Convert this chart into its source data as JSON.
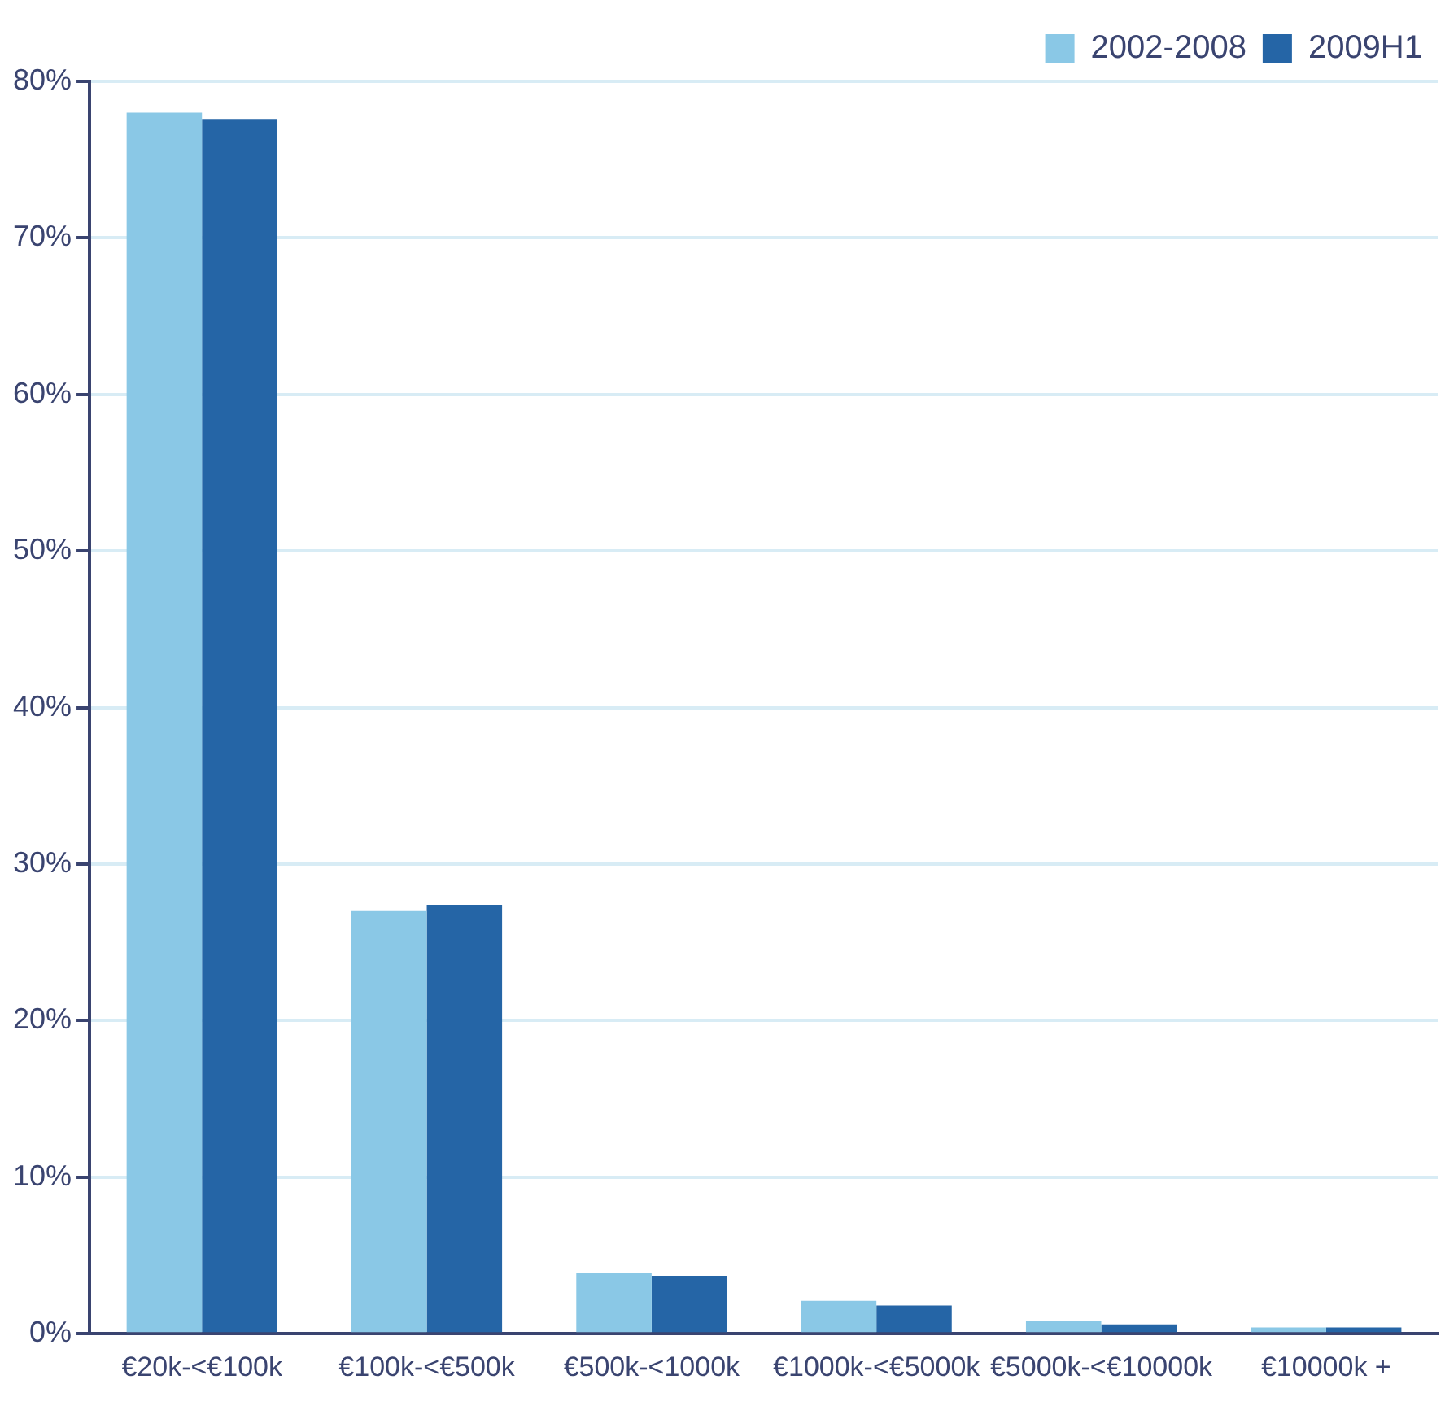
{
  "chart_data": {
    "type": "bar",
    "categories": [
      "€20k-<€100k",
      "€100k-<€500k",
      "€500k-<1000k",
      "€1000k-<€5000k",
      "€5000k-<€10000k",
      "€10000k +"
    ],
    "series": [
      {
        "name": "2002-2008",
        "color": "#8ac8e6",
        "values": [
          78.0,
          27.0,
          3.9,
          2.1,
          0.8,
          0.4
        ]
      },
      {
        "name": "2009H1",
        "color": "#2565a6",
        "values": [
          77.6,
          27.4,
          3.7,
          1.8,
          0.6,
          0.4
        ]
      }
    ],
    "ylim": [
      0,
      80
    ],
    "yticks": [
      {
        "value": 0,
        "label": "0%"
      },
      {
        "value": 10,
        "label": "10%"
      },
      {
        "value": 20,
        "label": "20%"
      },
      {
        "value": 30,
        "label": "30%"
      },
      {
        "value": 40,
        "label": "40%"
      },
      {
        "value": 50,
        "label": "50%"
      },
      {
        "value": 60,
        "label": "60%"
      },
      {
        "value": 70,
        "label": "70%"
      },
      {
        "value": 80,
        "label": "80%"
      }
    ],
    "grid": "y",
    "legend": "top right"
  }
}
